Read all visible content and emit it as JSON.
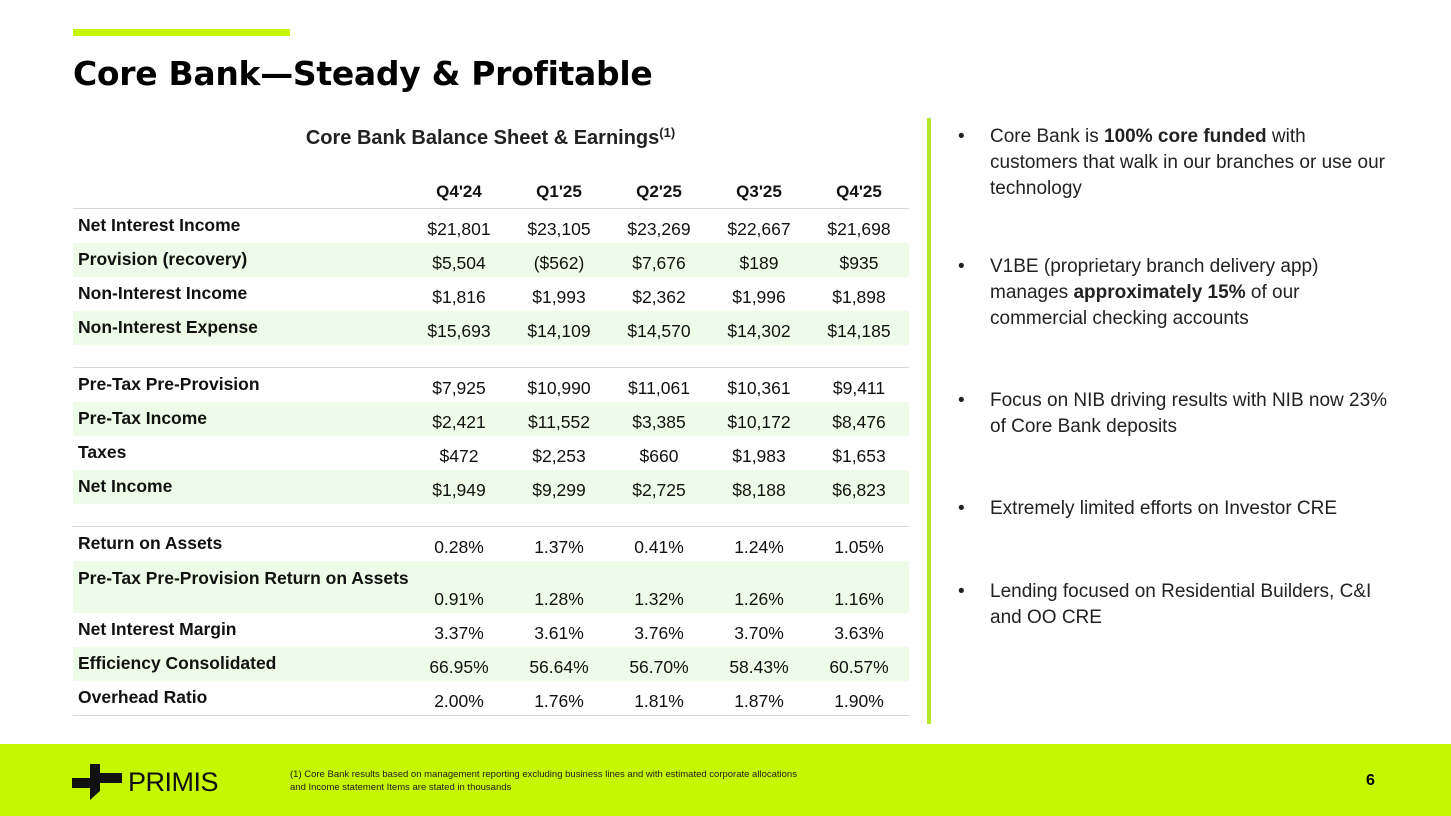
{
  "title": "Core Bank—Steady & Profitable",
  "table": {
    "title": "Core Bank Balance Sheet & Earnings",
    "title_footnote_mark": "(1)",
    "columns": [
      "Q4'24",
      "Q1'25",
      "Q2'25",
      "Q3'25",
      "Q4'25"
    ],
    "rows": [
      {
        "label": "Net Interest Income",
        "values": [
          "$21,801",
          "$23,105",
          "$23,269",
          "$22,667",
          "$21,698"
        ]
      },
      {
        "label": "Provision (recovery)",
        "values": [
          "$5,504",
          "($562)",
          "$7,676",
          "$189",
          "$935"
        ]
      },
      {
        "label": "Non-Interest Income",
        "values": [
          "$1,816",
          "$1,993",
          "$2,362",
          "$1,996",
          "$1,898"
        ]
      },
      {
        "label": "Non-Interest Expense",
        "values": [
          "$15,693",
          "$14,109",
          "$14,570",
          "$14,302",
          "$14,185"
        ]
      },
      {
        "label": "Pre-Tax Pre-Provision",
        "values": [
          "$7,925",
          "$10,990",
          "$11,061",
          "$10,361",
          "$9,411"
        ]
      },
      {
        "label": "Pre-Tax Income",
        "values": [
          "$2,421",
          "$11,552",
          "$3,385",
          "$10,172",
          "$8,476"
        ]
      },
      {
        "label": "Taxes",
        "values": [
          "$472",
          "$2,253",
          "$660",
          "$1,983",
          "$1,653"
        ]
      },
      {
        "label": "Net Income",
        "values": [
          "$1,949",
          "$9,299",
          "$2,725",
          "$8,188",
          "$6,823"
        ]
      },
      {
        "label": "Return on Assets",
        "values": [
          "0.28%",
          "1.37%",
          "0.41%",
          "1.24%",
          "1.05%"
        ]
      },
      {
        "label": "Pre-Tax Pre-Provision Return on Assets",
        "values": [
          "0.91%",
          "1.28%",
          "1.32%",
          "1.26%",
          "1.16%"
        ]
      },
      {
        "label": "Net Interest Margin",
        "values": [
          "3.37%",
          "3.61%",
          "3.76%",
          "3.70%",
          "3.63%"
        ]
      },
      {
        "label": "Efficiency Consolidated",
        "values": [
          "66.95%",
          "56.64%",
          "56.70%",
          "58.43%",
          "60.57%"
        ]
      },
      {
        "label": "Overhead Ratio",
        "values": [
          "2.00%",
          "1.76%",
          "1.81%",
          "1.87%",
          "1.90%"
        ]
      }
    ]
  },
  "bullets": [
    {
      "parts": [
        "Core Bank is ",
        "100% core funded",
        " with customers that walk in our branches or use our technology"
      ]
    },
    {
      "parts": [
        "V1BE (proprietary branch delivery app) manages ",
        "approximately 15%",
        " of our commercial checking accounts"
      ]
    },
    {
      "parts": [
        "Focus on NIB driving results with NIB now 23% of Core Bank deposits",
        "",
        ""
      ]
    },
    {
      "parts": [
        "Extremely limited efforts on Investor CRE",
        "",
        ""
      ]
    },
    {
      "parts": [
        "Lending focused on Residential Builders, C&I and OO CRE",
        "",
        ""
      ]
    }
  ],
  "footer": {
    "logo_text": "PRIMIS",
    "footnote_line1": "(1) Core Bank results based on management reporting excluding business lines and with estimated corporate allocations",
    "footnote_line2": "and Income statement Items are stated in thousands",
    "page_number": "6"
  },
  "colors": {
    "accent": "#c5f602",
    "divider": "#b3e62a",
    "row_shade": "#eefbe8"
  }
}
